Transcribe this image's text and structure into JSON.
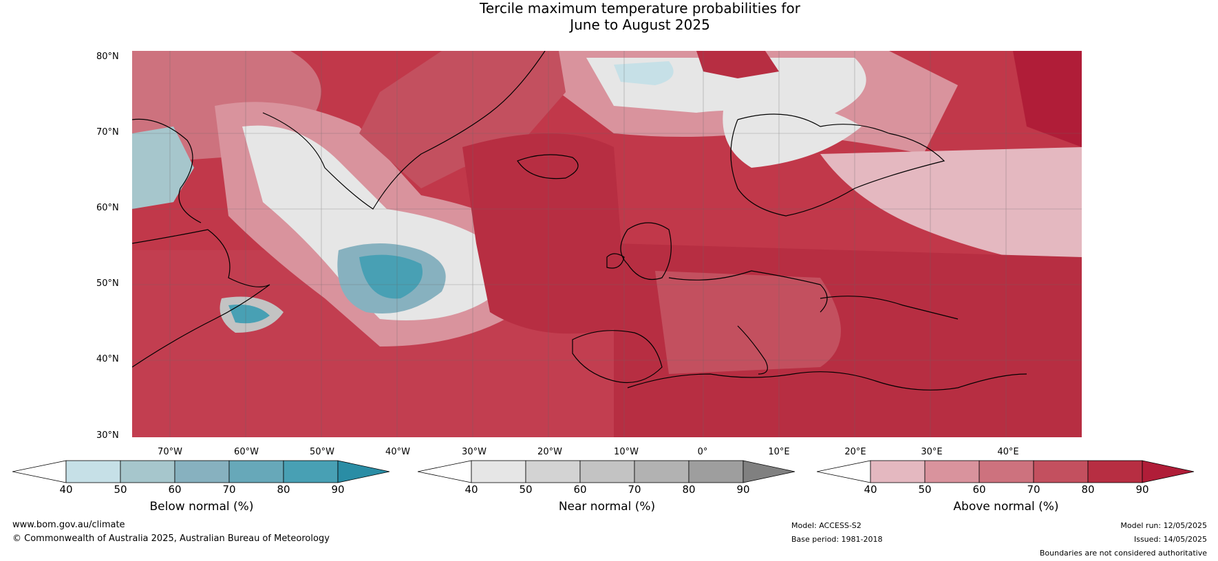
{
  "title": {
    "line1": "Tercile maximum temperature probabilities for",
    "line2": "June to August 2025"
  },
  "latitudes": [
    "80°N",
    "70°N",
    "60°N",
    "50°N",
    "40°N",
    "30°N"
  ],
  "longitudes": [
    "70°W",
    "60°W",
    "50°W",
    "40°W",
    "30°W",
    "20°W",
    "10°W",
    "0°",
    "10°E",
    "20°E",
    "30°E",
    "40°E"
  ],
  "colorbars": [
    {
      "label": "Below normal (%)",
      "ticks": [
        "40",
        "50",
        "60",
        "70",
        "80",
        "90"
      ],
      "colors": [
        "#c6e0e7",
        "#a6c6cc",
        "#87b1bf",
        "#67a8b9",
        "#48a0b4",
        "#2a8da5"
      ]
    },
    {
      "label": "Near normal (%)",
      "ticks": [
        "40",
        "50",
        "60",
        "70",
        "80",
        "90"
      ],
      "colors": [
        "#e6e6e6",
        "#d3d3d3",
        "#c3c3c3",
        "#b2b2b2",
        "#9e9e9e",
        "#808080"
      ]
    },
    {
      "label": "Above normal (%)",
      "ticks": [
        "40",
        "50",
        "60",
        "70",
        "80",
        "90"
      ],
      "colors": [
        "#e4b8c0",
        "#d9939d",
        "#cd727e",
        "#c3505f",
        "#b72e42",
        "#b01d38"
      ]
    }
  ],
  "footer": {
    "website": "www.bom.gov.au/climate",
    "copyright": "© Commonwealth of Australia 2025, Australian Bureau of Meteorology",
    "model": "Model: ACCESS-S2",
    "base_period": "Base period: 1981-2018",
    "model_run": "Model run: 12/05/2025",
    "issued": "Issued: 14/05/2025",
    "disclaimer": "Boundaries are not considered authoritative"
  }
}
